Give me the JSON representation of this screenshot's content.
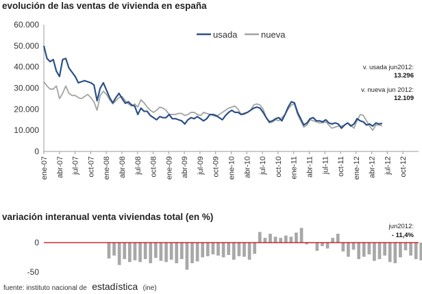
{
  "source": {
    "prefix": "fuente: instituto nacional de",
    "brand": "estadística",
    "suffix": "(ine)"
  },
  "chart_data": [
    {
      "type": "line",
      "title": "evolución de las ventas de vivienda en españa",
      "ylim": [
        0,
        60000
      ],
      "yticks": [
        "0",
        "10.000",
        "20.000",
        "30.000",
        "40.000",
        "50.000",
        "60.000"
      ],
      "ytick_values": [
        0,
        10000,
        20000,
        30000,
        40000,
        50000,
        60000
      ],
      "xticks": [
        "ene-07",
        "abr-07",
        "jul-07",
        "oct-07",
        "ene-08",
        "abr-08",
        "jul-08",
        "oct-08",
        "ene-09",
        "abr-09",
        "jul-09",
        "oct-09",
        "ene-10",
        "abr-10",
        "jul-10",
        "oct-10",
        "ene-11",
        "abr-11",
        "jul-11",
        "oct-11",
        "ene-12",
        "abr-12",
        "jul-12",
        "oct-12"
      ],
      "x_months": 72,
      "grid": false,
      "legend": "top",
      "series": [
        {
          "name": "usada",
          "color": "#2a4f86",
          "values": [
            50000,
            44000,
            42500,
            43500,
            38000,
            35500,
            43500,
            44000,
            39500,
            37500,
            35500,
            32500,
            33000,
            33500,
            33000,
            32500,
            31500,
            24000,
            30000,
            32500,
            29000,
            25500,
            23000,
            25500,
            27500,
            25000,
            22800,
            23500,
            22000,
            21500,
            17500,
            20500,
            19000,
            19000,
            17000,
            16000,
            15000,
            16500,
            16000,
            16000,
            17500,
            15500,
            15500,
            15000,
            14500,
            13000,
            15000,
            16000,
            15500,
            16500,
            15500,
            14500,
            15500,
            17500,
            17500,
            17000,
            16000,
            15000,
            17000,
            18500,
            19500,
            18500,
            18500,
            17500,
            18000,
            18500,
            19500,
            20500,
            21000,
            20500,
            18500,
            16000,
            14000,
            14500,
            15500,
            16000,
            14500,
            17500,
            21000,
            23500,
            23000,
            18500,
            15500,
            12500,
            13500,
            15500,
            16000,
            14500,
            14500,
            14000,
            15000,
            13500,
            13000,
            13500,
            13000,
            11000,
            12500,
            13500,
            12000,
            13000,
            15500,
            14500,
            14000,
            12500,
            13000,
            12000,
            13500,
            13000,
            13296
          ]
        },
        {
          "name": "nueva",
          "color": "#a0a4a0",
          "values": [
            33000,
            31000,
            29500,
            29500,
            31000,
            25000,
            27500,
            31000,
            27500,
            26500,
            26500,
            25500,
            25000,
            26000,
            27000,
            25500,
            23500,
            19500,
            26500,
            28500,
            27000,
            24500,
            22500,
            24000,
            25500,
            26000,
            24000,
            22500,
            21500,
            22500,
            21000,
            24500,
            23000,
            21000,
            19500,
            18500,
            19500,
            21000,
            20500,
            19500,
            17500,
            17500,
            17500,
            18000,
            18000,
            17000,
            17500,
            18500,
            18500,
            17500,
            17000,
            18500,
            18000,
            17500,
            17000,
            16500,
            17500,
            18500,
            19500,
            20500,
            21000,
            21500,
            20000,
            17500,
            17500,
            18500,
            19500,
            22000,
            22500,
            22000,
            20000,
            16000,
            13500,
            14000,
            15000,
            14500,
            16000,
            17500,
            20000,
            22000,
            22500,
            17500,
            14500,
            11500,
            12500,
            15000,
            14500,
            14000,
            13500,
            13500,
            14000,
            12500,
            11000,
            11500,
            12000,
            12000,
            12500,
            13500,
            12500,
            11000,
            14500,
            17500,
            17000,
            14500,
            12000,
            10000,
            12500,
            12500,
            12109
          ]
        }
      ],
      "annotations": [
        {
          "label": "v. usada jun2012:",
          "value": "13.296"
        },
        {
          "label": "v. nueva jun 2012:",
          "value": "12.109"
        }
      ]
    },
    {
      "type": "bar",
      "title": "variación interanual venta viviendas total (en %)",
      "ylim": [
        -60,
        30
      ],
      "yticks": [
        "-50",
        "0"
      ],
      "ytick_values": [
        -50,
        0
      ],
      "zero_line_color": "#cc0000",
      "bar_color": "#a8a8a8",
      "start_month": 12,
      "values": [
        -27,
        -22,
        -38,
        -28,
        -33,
        -30,
        -33,
        -28,
        -35,
        -26,
        -31,
        -33,
        -29,
        -35,
        -28,
        -46,
        -35,
        -32,
        -25,
        -23,
        -20,
        -22,
        -25,
        -21,
        -29,
        -23,
        -24,
        -29,
        -19,
        18,
        8,
        15,
        10,
        8,
        12,
        10,
        17,
        25,
        -3,
        -1,
        -14,
        -6,
        -10,
        8,
        15,
        -15,
        -24,
        -12,
        -28,
        -24,
        -20,
        -31,
        -28,
        -22,
        -33,
        -35,
        -25,
        -13,
        -22,
        -28,
        -30,
        -24,
        -25,
        -16,
        -20,
        -11,
        -11
      ],
      "annotations": [
        {
          "label": "jun2012:",
          "value": "- 11,4%"
        }
      ]
    }
  ]
}
